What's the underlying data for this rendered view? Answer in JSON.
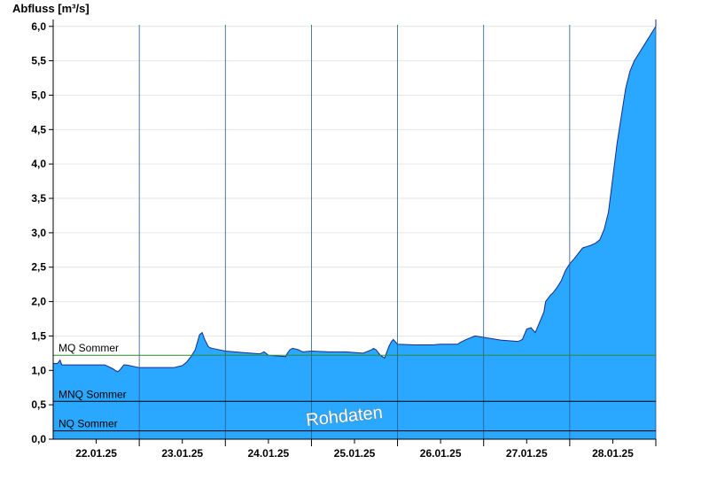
{
  "chart_data": {
    "type": "area",
    "ylabel": "Abfluss [m³/s]",
    "ylim": [
      0,
      6.1
    ],
    "yticks": [
      "0,0",
      "0,5",
      "1,0",
      "1,5",
      "2,0",
      "2,5",
      "3,0",
      "3,5",
      "4,0",
      "4,5",
      "5,0",
      "5,5",
      "6,0"
    ],
    "ytick_values": [
      0,
      0.5,
      1,
      1.5,
      2,
      2.5,
      3,
      3.5,
      4,
      4.5,
      5,
      5.5,
      6
    ],
    "x_range": [
      "21.01.25 12:00",
      "28.01.25 12:00"
    ],
    "x_day_start": "21.01.25 12:00",
    "xticks": [
      "22.01.25",
      "23.01.25",
      "24.01.25",
      "25.01.25",
      "26.01.25",
      "27.01.25",
      "28.01.25"
    ],
    "day_separators": [
      "22.01.25 12:00",
      "23.01.25 12:00",
      "24.01.25 12:00",
      "25.01.25 12:00",
      "26.01.25 12:00",
      "27.01.25 12:00",
      "28.01.25 12:00"
    ],
    "series": [
      {
        "x_days": [
          0.0,
          0.05,
          0.08,
          0.1,
          0.6,
          0.7,
          0.72,
          0.75,
          0.77,
          0.82,
          0.85,
          1.0,
          1.4,
          1.5,
          1.55,
          1.6,
          1.65,
          1.7,
          1.73,
          1.76,
          1.8,
          1.82,
          1.85,
          2.0,
          2.2,
          2.4,
          2.45,
          2.5,
          2.6,
          2.7,
          2.72,
          2.75,
          2.78,
          2.85,
          2.88,
          2.9,
          3.0,
          3.2,
          3.4,
          3.6,
          3.7,
          3.72,
          3.75,
          3.8,
          3.85,
          3.9,
          3.93,
          3.95,
          4.0,
          4.2,
          4.4,
          4.5,
          4.6,
          4.7,
          4.72,
          4.75,
          4.8,
          4.9,
          5.0,
          5.2,
          5.4,
          5.45,
          5.5,
          5.55,
          5.6,
          5.65,
          5.7,
          5.72,
          5.75,
          5.78,
          5.8,
          5.85,
          5.9,
          5.95,
          6.0,
          6.05,
          6.1,
          6.15,
          6.2,
          6.25,
          6.3,
          6.35,
          6.4,
          6.45,
          6.5,
          6.55,
          6.6,
          6.65,
          6.7,
          6.75,
          6.8,
          6.85,
          6.9,
          6.95,
          7.0
        ],
        "values": [
          1.1,
          1.1,
          1.15,
          1.08,
          1.08,
          1.02,
          1.0,
          0.98,
          1.0,
          1.08,
          1.08,
          1.04,
          1.04,
          1.07,
          1.12,
          1.2,
          1.3,
          1.52,
          1.55,
          1.45,
          1.35,
          1.33,
          1.32,
          1.28,
          1.26,
          1.24,
          1.27,
          1.22,
          1.21,
          1.2,
          1.25,
          1.3,
          1.32,
          1.3,
          1.28,
          1.27,
          1.28,
          1.27,
          1.27,
          1.25,
          1.3,
          1.32,
          1.3,
          1.22,
          1.18,
          1.35,
          1.42,
          1.45,
          1.38,
          1.37,
          1.37,
          1.38,
          1.38,
          1.38,
          1.4,
          1.42,
          1.45,
          1.5,
          1.48,
          1.44,
          1.42,
          1.45,
          1.6,
          1.62,
          1.55,
          1.7,
          1.85,
          2.0,
          2.05,
          2.1,
          2.12,
          2.2,
          2.3,
          2.45,
          2.55,
          2.62,
          2.7,
          2.78,
          2.8,
          2.82,
          2.85,
          2.9,
          3.05,
          3.3,
          3.8,
          4.3,
          4.7,
          5.1,
          5.35,
          5.5,
          5.6,
          5.7,
          5.8,
          5.9,
          6.0
        ]
      }
    ],
    "reference_lines": [
      {
        "label": "MQ Sommer",
        "value": 1.22,
        "color": "#2e8b2e"
      },
      {
        "label": "MNQ Sommer",
        "value": 0.55,
        "color": "#000000"
      },
      {
        "label": "NQ Sommer",
        "value": 0.12,
        "color": "#000000"
      }
    ],
    "watermark": "Rohdaten",
    "fill_color": "#2aa7ff",
    "line_color": "#1a2a8c",
    "grid": true
  }
}
